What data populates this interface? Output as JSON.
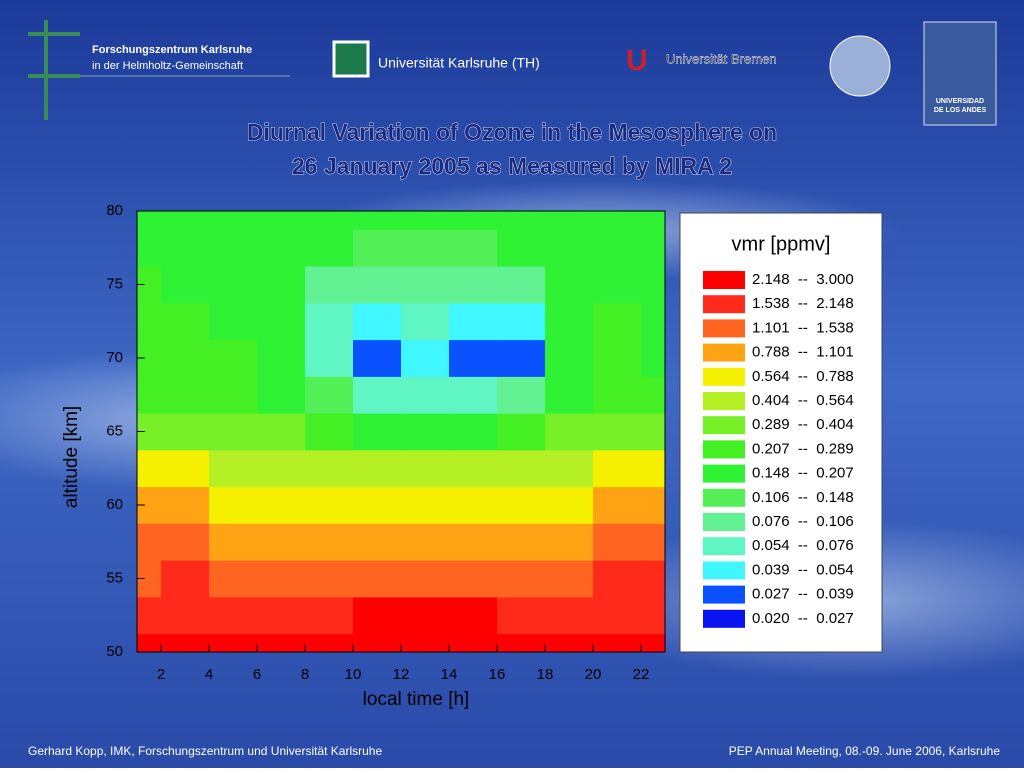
{
  "header": {
    "fzk_name": "Forschungszentrum Karlsruhe",
    "fzk_sub": "in der Helmholtz-Gemeinschaft",
    "uka": "Universität Karlsruhe (TH)",
    "bremen": "Universität Bremen",
    "ula_1": "UNIVERSIDAD",
    "ula_2": "DE LOS ANDES"
  },
  "footer": {
    "left": "Gerhard Kopp, IMK, Forschungszentrum und Universität Karlsruhe",
    "right": "PEP Annual Meeting, 08.-09. June 2006, Karlsruhe"
  },
  "chart_data": {
    "type": "contour",
    "title_lines": [
      "Diurnal Variation of Ozone in the Mesosphere on",
      "26 January 2005 as Measured by MIRA 2"
    ],
    "x_label": "local time [h]",
    "y_label": "altitude [km]",
    "xlim": [
      1,
      23
    ],
    "ylim": [
      50,
      80
    ],
    "xticks": [
      2,
      4,
      6,
      8,
      10,
      12,
      14,
      16,
      18,
      20,
      22
    ],
    "yticks": [
      50,
      55,
      60,
      65,
      70,
      75,
      80
    ],
    "x": [
      1,
      3,
      5,
      7,
      9,
      11,
      13,
      15,
      17,
      19,
      21,
      23
    ],
    "y": [
      50,
      52.5,
      55,
      57.5,
      60,
      62.5,
      65,
      67.5,
      70,
      72.5,
      75,
      77.5,
      80
    ],
    "z": [
      [
        2.5,
        2.5,
        2.5,
        2.6,
        2.6,
        2.7,
        2.7,
        2.7,
        2.6,
        2.5,
        2.5,
        2.5
      ],
      [
        1.9,
        1.95,
        1.95,
        2.0,
        2.1,
        2.2,
        2.2,
        2.2,
        2.1,
        1.95,
        1.8,
        1.9
      ],
      [
        1.5,
        1.55,
        1.5,
        1.4,
        1.3,
        1.25,
        1.2,
        1.2,
        1.3,
        1.45,
        1.6,
        1.55
      ],
      [
        1.15,
        1.15,
        1.1,
        1.0,
        0.9,
        0.85,
        0.85,
        0.85,
        0.9,
        1.05,
        1.2,
        1.15
      ],
      [
        0.8,
        0.8,
        0.75,
        0.7,
        0.62,
        0.58,
        0.58,
        0.58,
        0.62,
        0.72,
        0.85,
        0.8
      ],
      [
        0.6,
        0.6,
        0.56,
        0.5,
        0.45,
        0.42,
        0.42,
        0.42,
        0.45,
        0.52,
        0.6,
        0.6
      ],
      [
        0.38,
        0.37,
        0.34,
        0.3,
        0.24,
        0.2,
        0.2,
        0.2,
        0.24,
        0.3,
        0.36,
        0.36
      ],
      [
        0.28,
        0.27,
        0.25,
        0.2,
        0.12,
        0.07,
        0.07,
        0.07,
        0.09,
        0.2,
        0.26,
        0.26
      ],
      [
        0.24,
        0.23,
        0.21,
        0.17,
        0.065,
        0.03,
        0.045,
        0.03,
        0.035,
        0.16,
        0.22,
        0.2
      ],
      [
        0.22,
        0.22,
        0.2,
        0.16,
        0.07,
        0.045,
        0.06,
        0.045,
        0.05,
        0.15,
        0.21,
        0.2
      ],
      [
        0.21,
        0.2,
        0.2,
        0.17,
        0.1,
        0.08,
        0.085,
        0.08,
        0.09,
        0.16,
        0.2,
        0.2
      ],
      [
        0.2,
        0.2,
        0.19,
        0.18,
        0.15,
        0.14,
        0.14,
        0.14,
        0.15,
        0.18,
        0.19,
        0.19
      ],
      [
        0.18,
        0.18,
        0.18,
        0.18,
        0.17,
        0.17,
        0.17,
        0.17,
        0.17,
        0.17,
        0.18,
        0.18
      ]
    ],
    "levels": [
      0.02,
      0.027,
      0.039,
      0.054,
      0.076,
      0.106,
      0.148,
      0.207,
      0.289,
      0.404,
      0.564,
      0.788,
      1.101,
      1.538,
      2.148,
      3.0
    ],
    "legend_title": "vmr [ppmv]",
    "legend_labels": [
      "2.148  --  3.000",
      "1.538  --  2.148",
      "1.101  --  1.538",
      "0.788  --  1.101",
      "0.564  --  0.788",
      "0.404  --  0.564",
      "0.289  --  0.404",
      "0.207  --  0.289",
      "0.148  --  0.207",
      "0.106  --  0.148",
      "0.076  --  0.106",
      "0.054  --  0.076",
      "0.039  --  0.054",
      "0.027  --  0.039",
      "0.020  --  0.027"
    ],
    "legend_colors": [
      "#ff0000",
      "#ff2a1a",
      "#ff6420",
      "#ffa214",
      "#f5f000",
      "#b4f024",
      "#78f028",
      "#44f024",
      "#30f234",
      "#52f056",
      "#62f294",
      "#60f6c4",
      "#40f6ff",
      "#0a52ff",
      "#0a14f0"
    ]
  }
}
